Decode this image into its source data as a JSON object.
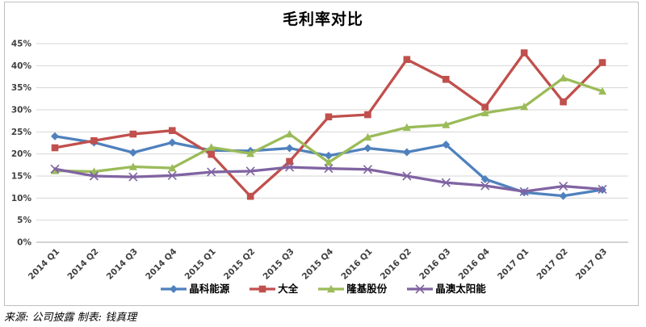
{
  "chart_data": {
    "type": "line",
    "title": "毛利率对比",
    "categories": [
      "2014 Q1",
      "2014 Q2",
      "2014 Q3",
      "2014 Q4",
      "2015 Q1",
      "2015 Q2",
      "2015 Q3",
      "2015 Q4",
      "2016 Q1",
      "2016 Q2",
      "2016 Q3",
      "2016 Q4",
      "2017 Q1",
      "2017 Q2",
      "2017 Q3"
    ],
    "series": [
      {
        "name": "晶科能源",
        "marker": "diamond",
        "color": "#4F81BD",
        "values": [
          24.0,
          22.6,
          20.3,
          22.6,
          20.8,
          20.7,
          21.3,
          19.6,
          21.3,
          20.4,
          22.1,
          14.3,
          11.3,
          10.5,
          11.9
        ]
      },
      {
        "name": "大全",
        "marker": "square",
        "color": "#C0504D",
        "values": [
          21.4,
          23.0,
          24.5,
          25.3,
          19.9,
          10.4,
          18.3,
          28.4,
          28.9,
          41.4,
          36.9,
          30.6,
          42.9,
          31.8,
          40.7
        ]
      },
      {
        "name": "隆基股份",
        "marker": "triangle",
        "color": "#9BBB59",
        "values": [
          16.2,
          16.0,
          17.1,
          16.8,
          21.5,
          20.1,
          24.5,
          18.1,
          23.8,
          26.0,
          26.6,
          29.3,
          30.7,
          37.2,
          34.2
        ]
      },
      {
        "name": "晶澳太阳能",
        "marker": "x",
        "color": "#8064A2",
        "values": [
          16.6,
          15.0,
          14.8,
          15.1,
          15.9,
          16.1,
          17.0,
          16.7,
          16.5,
          15.0,
          13.5,
          12.8,
          11.5,
          12.7,
          12.0
        ]
      }
    ],
    "ylim": [
      0,
      45
    ],
    "ytick_step": 5,
    "ytick_labels": [
      "0%",
      "5%",
      "10%",
      "15%",
      "20%",
      "25%",
      "30%",
      "35%",
      "40%",
      "45%"
    ],
    "grid": true,
    "legend_position": "bottom"
  },
  "footer": {
    "text": "来源: 公司披露  制表: 钱真理"
  }
}
